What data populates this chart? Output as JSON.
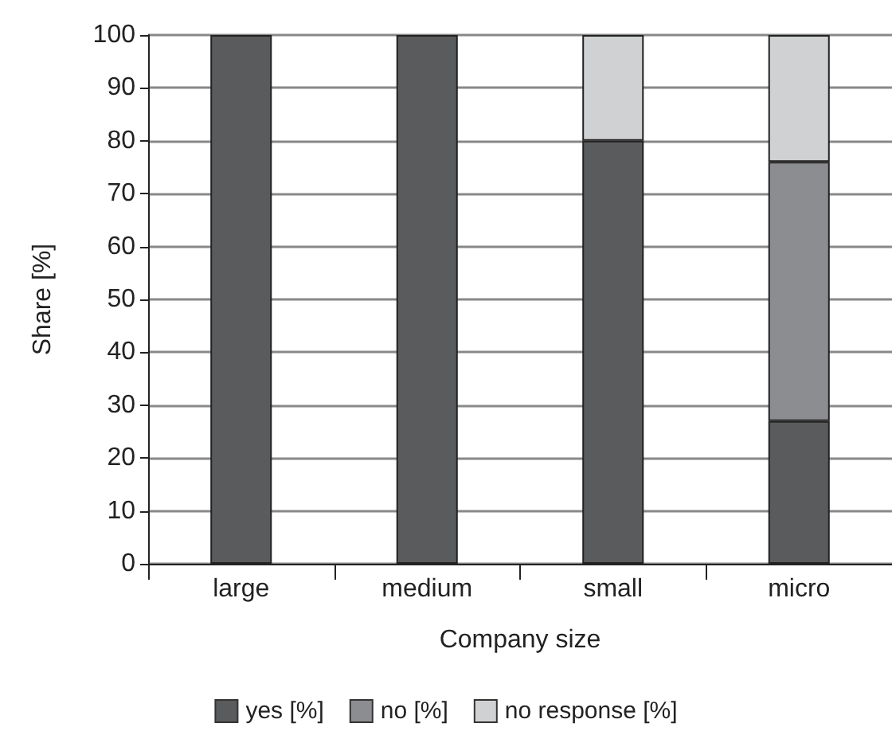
{
  "chart_data": {
    "type": "bar",
    "stacked": true,
    "xlabel": "Company size",
    "ylabel": "Share [%]",
    "categories": [
      "large",
      "medium",
      "small",
      "micro"
    ],
    "series": [
      {
        "name": "yes [%]",
        "color": "#5a5b5d",
        "values": [
          100,
          100,
          80,
          27
        ]
      },
      {
        "name": "no [%]",
        "color": "#8c8d90",
        "values": [
          null,
          null,
          null,
          49
        ]
      },
      {
        "name": "no response [%]",
        "color": "#d0d1d3",
        "values": [
          null,
          null,
          20,
          24
        ]
      }
    ],
    "ylim": [
      0,
      100
    ],
    "yticks": [
      0,
      10,
      20,
      30,
      40,
      50,
      60,
      70,
      80,
      90,
      100
    ],
    "grid": "y",
    "legend": "bottom"
  }
}
